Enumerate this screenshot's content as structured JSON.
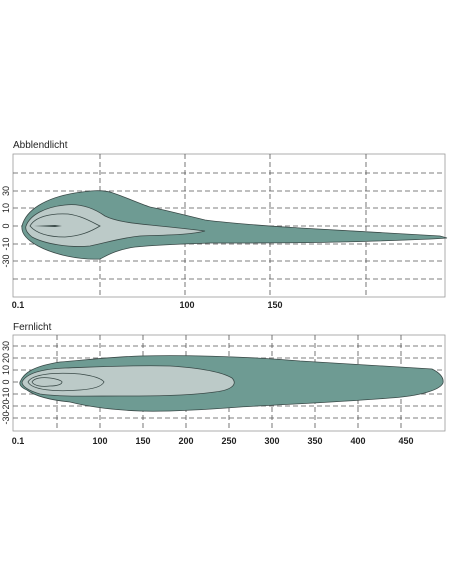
{
  "chart_data": [
    {
      "type": "area",
      "title": "Abblendlicht",
      "x_ticks": [
        "0.1",
        "100",
        "150"
      ],
      "y_ticks": [
        "30",
        "10",
        "0",
        "-10",
        "-30"
      ],
      "grid": true,
      "colors": {
        "outer": "#6e9b93",
        "inner": "#bccac8",
        "grid": "#555555"
      }
    },
    {
      "type": "area",
      "title": "Fernlicht",
      "x_ticks": [
        "0.1",
        "100",
        "150",
        "200",
        "250",
        "300",
        "350",
        "400",
        "450"
      ],
      "y_ticks": [
        "30",
        "20",
        "10",
        "0",
        "-10",
        "-20",
        "-30"
      ],
      "grid": true,
      "colors": {
        "outer": "#6e9b93",
        "inner": "#bccac8",
        "grid": "#555555"
      }
    }
  ]
}
